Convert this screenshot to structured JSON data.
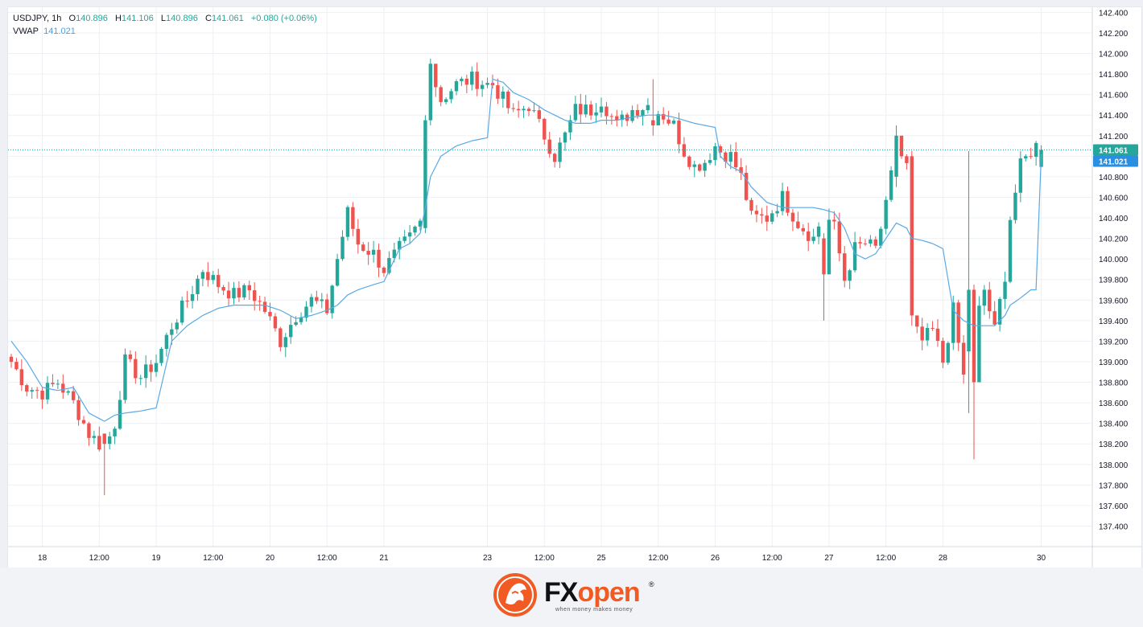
{
  "legend": {
    "symbol": "USDJPY",
    "interval": "1h",
    "open_label": "O",
    "open": "140.896",
    "high_label": "H",
    "high": "141.106",
    "low_label": "L",
    "low": "140.896",
    "close_label": "C",
    "close": "141.061",
    "change": "+0.080 (+0.06%)",
    "indicator_name": "VWAP",
    "indicator_value": "141.021"
  },
  "colors": {
    "up": "#26a69a",
    "down": "#ef5350",
    "vwap": "#5aa9e6",
    "price_tag": "#26a69a",
    "vwap_tag": "#2a8fe0",
    "grid": "#eef0f4",
    "brand": "#f15a22"
  },
  "chart_data": {
    "type": "candlestick",
    "symbol": "USDJPY",
    "interval": "1h",
    "ylim": [
      137.2,
      142.45
    ],
    "y_ticks": [
      "142.400",
      "142.200",
      "142.000",
      "141.800",
      "141.600",
      "141.400",
      "141.200",
      "141.000",
      "140.800",
      "140.600",
      "140.400",
      "140.200",
      "140.000",
      "139.800",
      "139.600",
      "139.400",
      "139.200",
      "139.000",
      "138.800",
      "138.600",
      "138.400",
      "138.200",
      "138.000",
      "137.800",
      "137.600",
      "137.400"
    ],
    "x_ticks": [
      {
        "label": "18",
        "i": 6
      },
      {
        "label": "12:00",
        "i": 17
      },
      {
        "label": "19",
        "i": 28
      },
      {
        "label": "12:00",
        "i": 39
      },
      {
        "label": "20",
        "i": 50
      },
      {
        "label": "12:00",
        "i": 61
      },
      {
        "label": "21",
        "i": 72
      },
      {
        "label": "23",
        "i": 92
      },
      {
        "label": "12:00",
        "i": 103
      },
      {
        "label": "25",
        "i": 114
      },
      {
        "label": "12:00",
        "i": 125
      },
      {
        "label": "26",
        "i": 136
      },
      {
        "label": "12:00",
        "i": 147
      },
      {
        "label": "27",
        "i": 158
      },
      {
        "label": "12:00",
        "i": 169
      },
      {
        "label": "28",
        "i": 180
      },
      {
        "label": "30",
        "i": 199
      }
    ],
    "last_price": "141.061",
    "vwap_last": "141.021",
    "anchors": [
      [
        0,
        139.0,
        139.2
      ],
      [
        3,
        138.75,
        139.0
      ],
      [
        6,
        138.7,
        138.75
      ],
      [
        9,
        138.8,
        138.72
      ],
      [
        12,
        138.6,
        138.75
      ],
      [
        15,
        138.3,
        138.5
      ],
      [
        18,
        138.15,
        138.42
      ],
      [
        20,
        138.4,
        138.48
      ],
      [
        22,
        139.0,
        138.5
      ],
      [
        25,
        138.85,
        138.52
      ],
      [
        28,
        139.0,
        138.55
      ],
      [
        31,
        139.35,
        139.2
      ],
      [
        34,
        139.6,
        139.35
      ],
      [
        37,
        139.9,
        139.45
      ],
      [
        40,
        139.75,
        139.52
      ],
      [
        43,
        139.65,
        139.55
      ],
      [
        46,
        139.7,
        139.55
      ],
      [
        49,
        139.5,
        139.55
      ],
      [
        52,
        139.2,
        139.5
      ],
      [
        55,
        139.45,
        139.42
      ],
      [
        58,
        139.6,
        139.45
      ],
      [
        61,
        139.5,
        139.5
      ],
      [
        63,
        140.0,
        139.55
      ],
      [
        65,
        140.45,
        139.65
      ],
      [
        67,
        140.15,
        139.7
      ],
      [
        70,
        140.05,
        139.75
      ],
      [
        72,
        139.9,
        139.78
      ],
      [
        75,
        140.1,
        140.1
      ],
      [
        77,
        140.2,
        140.15
      ],
      [
        79,
        140.35,
        140.25
      ],
      [
        80,
        141.4,
        140.5
      ],
      [
        81,
        141.85,
        140.8
      ],
      [
        83,
        141.55,
        141.0
      ],
      [
        86,
        141.7,
        141.1
      ],
      [
        89,
        141.75,
        141.15
      ],
      [
        92,
        141.7,
        141.18
      ],
      [
        93,
        141.7,
        141.75
      ],
      [
        95,
        141.55,
        141.72
      ],
      [
        97,
        141.4,
        141.62
      ],
      [
        100,
        141.5,
        141.55
      ],
      [
        103,
        141.2,
        141.45
      ],
      [
        105,
        141.0,
        141.4
      ],
      [
        107,
        141.2,
        141.35
      ],
      [
        109,
        141.45,
        141.32
      ],
      [
        112,
        141.45,
        141.32
      ],
      [
        114,
        141.55,
        141.35
      ],
      [
        117,
        141.3,
        141.35
      ],
      [
        120,
        141.45,
        141.38
      ],
      [
        123,
        141.5,
        141.4
      ],
      [
        126,
        141.4,
        141.4
      ],
      [
        128,
        141.3,
        141.38
      ],
      [
        130,
        141.05,
        141.35
      ],
      [
        132,
        140.9,
        141.32
      ],
      [
        134,
        140.95,
        141.3
      ],
      [
        136,
        141.1,
        141.28
      ],
      [
        137,
        141.05,
        141.0
      ],
      [
        139,
        141.0,
        140.9
      ],
      [
        141,
        140.8,
        140.85
      ],
      [
        143,
        140.4,
        140.7
      ],
      [
        146,
        140.4,
        140.55
      ],
      [
        149,
        140.6,
        140.5
      ],
      [
        152,
        140.35,
        140.5
      ],
      [
        155,
        140.2,
        140.5
      ],
      [
        157,
        140.45,
        140.48
      ],
      [
        159,
        140.3,
        140.45
      ],
      [
        161,
        139.8,
        140.3
      ],
      [
        163,
        140.1,
        140.05
      ],
      [
        165,
        140.15,
        140.0
      ],
      [
        167,
        140.1,
        140.05
      ],
      [
        169,
        140.5,
        140.2
      ],
      [
        171,
        141.1,
        140.35
      ],
      [
        173,
        140.9,
        140.3
      ],
      [
        174,
        139.35,
        140.2
      ],
      [
        176,
        139.2,
        140.18
      ],
      [
        178,
        139.3,
        140.15
      ],
      [
        180,
        139.0,
        140.1
      ],
      [
        182,
        139.5,
        139.5
      ],
      [
        184,
        138.85,
        139.4
      ],
      [
        186,
        139.3,
        139.35
      ],
      [
        188,
        139.7,
        139.35
      ],
      [
        190,
        139.3,
        139.35
      ],
      [
        192,
        139.85,
        139.45
      ],
      [
        193,
        140.4,
        139.55
      ],
      [
        195,
        140.9,
        139.62
      ],
      [
        197,
        141.05,
        139.7
      ],
      [
        198,
        141.1,
        139.7
      ],
      [
        199,
        141.06,
        141.02
      ]
    ],
    "special_candles": [
      {
        "i": 18,
        "open": 138.3,
        "high": 138.3,
        "low": 137.7,
        "close": 138.2
      },
      {
        "i": 80,
        "open": 140.3,
        "high": 141.4,
        "low": 140.25,
        "close": 141.35
      },
      {
        "i": 81,
        "open": 141.35,
        "high": 141.95,
        "low": 141.3,
        "close": 141.9
      },
      {
        "i": 124,
        "open": 141.35,
        "high": 141.75,
        "low": 141.2,
        "close": 141.3
      },
      {
        "i": 157,
        "open": 140.2,
        "high": 140.25,
        "low": 139.4,
        "close": 139.85
      },
      {
        "i": 171,
        "open": 140.8,
        "high": 141.3,
        "low": 140.7,
        "close": 141.2
      },
      {
        "i": 174,
        "open": 141.0,
        "high": 141.05,
        "low": 139.35,
        "close": 139.45
      },
      {
        "i": 185,
        "open": 139.1,
        "high": 141.05,
        "low": 138.5,
        "close": 139.7
      },
      {
        "i": 186,
        "open": 139.7,
        "high": 139.75,
        "low": 138.05,
        "close": 138.8
      }
    ]
  },
  "brand": {
    "name_fx": "FX",
    "name_open": "open",
    "registered": "®",
    "tagline": "when money makes money"
  }
}
